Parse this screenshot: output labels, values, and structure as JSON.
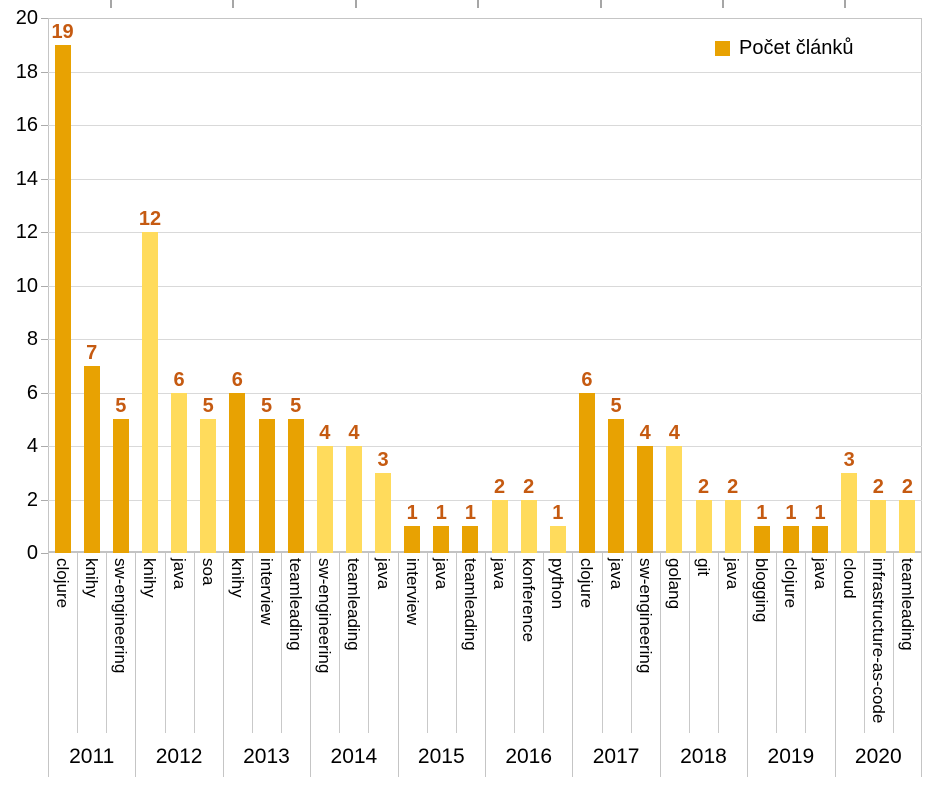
{
  "legend": {
    "label": "Počet článků"
  },
  "chart_data": {
    "type": "bar",
    "title": "",
    "xlabel": "",
    "ylabel": "",
    "legend_position": "top-right",
    "series_name": "Počet článků",
    "ylim": [
      0,
      20
    ],
    "ytick_step": 2,
    "grid": "horizontal-only",
    "colors": {
      "dark": "#E8A202",
      "light": "#FFDB5C",
      "value_label": "#C55A11"
    },
    "groups": [
      {
        "year": "2011",
        "shade": "dark",
        "items": [
          {
            "label": "clojure",
            "value": 19
          },
          {
            "label": "knihy",
            "value": 7
          },
          {
            "label": "sw-engineering",
            "value": 5
          }
        ]
      },
      {
        "year": "2012",
        "shade": "light",
        "items": [
          {
            "label": "knihy",
            "value": 12
          },
          {
            "label": "java",
            "value": 6
          },
          {
            "label": "soa",
            "value": 5
          }
        ]
      },
      {
        "year": "2013",
        "shade": "dark",
        "items": [
          {
            "label": "knihy",
            "value": 6
          },
          {
            "label": "interview",
            "value": 5
          },
          {
            "label": "teamleading",
            "value": 5
          }
        ]
      },
      {
        "year": "2014",
        "shade": "light",
        "items": [
          {
            "label": "sw-engineering",
            "value": 4
          },
          {
            "label": "teamleading",
            "value": 4
          },
          {
            "label": "java",
            "value": 3
          }
        ]
      },
      {
        "year": "2015",
        "shade": "dark",
        "items": [
          {
            "label": "interview",
            "value": 1
          },
          {
            "label": "java",
            "value": 1
          },
          {
            "label": "teamleading",
            "value": 1
          }
        ]
      },
      {
        "year": "2016",
        "shade": "light",
        "items": [
          {
            "label": "java",
            "value": 2
          },
          {
            "label": "konference",
            "value": 2
          },
          {
            "label": "python",
            "value": 1
          }
        ]
      },
      {
        "year": "2017",
        "shade": "dark",
        "items": [
          {
            "label": "clojure",
            "value": 6
          },
          {
            "label": "java",
            "value": 5
          },
          {
            "label": "sw-engineering",
            "value": 4
          }
        ]
      },
      {
        "year": "2018",
        "shade": "light",
        "items": [
          {
            "label": "golang",
            "value": 4
          },
          {
            "label": "git",
            "value": 2
          },
          {
            "label": "java",
            "value": 2
          }
        ]
      },
      {
        "year": "2019",
        "shade": "dark",
        "items": [
          {
            "label": "blogging",
            "value": 1
          },
          {
            "label": "clojure",
            "value": 1
          },
          {
            "label": "java",
            "value": 1
          }
        ]
      },
      {
        "year": "2020",
        "shade": "light",
        "items": [
          {
            "label": "cloud",
            "value": 3
          },
          {
            "label": "infrastructure-as-code",
            "value": 2
          },
          {
            "label": "teamleading",
            "value": 2
          }
        ]
      }
    ]
  }
}
